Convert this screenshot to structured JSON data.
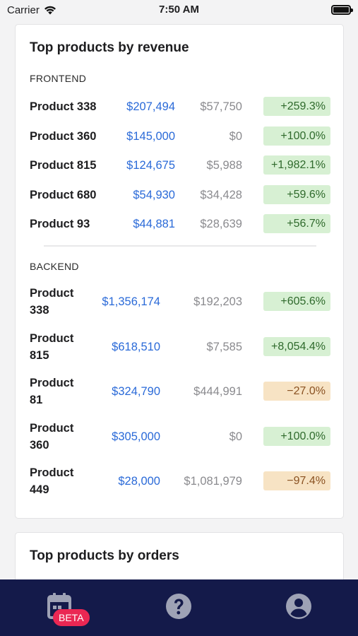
{
  "status_bar": {
    "carrier": "Carrier",
    "time": "7:50 AM"
  },
  "revenue_card": {
    "title": "Top products by revenue",
    "frontend": {
      "label": "FRONTEND",
      "rows": [
        {
          "product": "Product 338",
          "revenue": "$207,494",
          "previous": "$57,750",
          "change": "+259.3%",
          "trend": "up"
        },
        {
          "product": "Product 360",
          "revenue": "$145,000",
          "previous": "$0",
          "change": "+100.0%",
          "trend": "up"
        },
        {
          "product": "Product 815",
          "revenue": "$124,675",
          "previous": "$5,988",
          "change": "+1,982.1%",
          "trend": "up"
        },
        {
          "product": "Product 680",
          "revenue": "$54,930",
          "previous": "$34,428",
          "change": "+59.6%",
          "trend": "up"
        },
        {
          "product": "Product 93",
          "revenue": "$44,881",
          "previous": "$28,639",
          "change": "+56.7%",
          "trend": "up"
        }
      ]
    },
    "backend": {
      "label": "BACKEND",
      "rows": [
        {
          "product_line1": "Product",
          "product_line2": "338",
          "revenue": "$1,356,174",
          "previous": "$192,203",
          "change": "+605.6%",
          "trend": "up"
        },
        {
          "product_line1": "Product",
          "product_line2": "815",
          "revenue": "$618,510",
          "previous": "$7,585",
          "change": "+8,054.4%",
          "trend": "up"
        },
        {
          "product_line1": "Product",
          "product_line2": "81",
          "revenue": "$324,790",
          "previous": "$444,991",
          "change": "−27.0%",
          "trend": "down"
        },
        {
          "product_line1": "Product",
          "product_line2": "360",
          "revenue": "$305,000",
          "previous": "$0",
          "change": "+100.0%",
          "trend": "up"
        },
        {
          "product_line1": "Product",
          "product_line2": "449",
          "revenue": "$28,000",
          "previous": "$1,081,979",
          "change": "−97.4%",
          "trend": "down"
        }
      ]
    }
  },
  "orders_card": {
    "title": "Top products by orders"
  },
  "tab_bar": {
    "tabs": [
      {
        "icon": "calendar-icon",
        "badge": "BETA"
      },
      {
        "icon": "help-icon"
      },
      {
        "icon": "account-icon"
      }
    ],
    "colors": {
      "background": "#141a4a",
      "icon": "#9ea2b5",
      "badge": "#ea2753"
    }
  },
  "colors": {
    "revenue": "#2a6ad8",
    "previous": "#8a8a8e",
    "positive_bg": "#d7f0d3",
    "negative_bg": "#f7e3c4"
  }
}
